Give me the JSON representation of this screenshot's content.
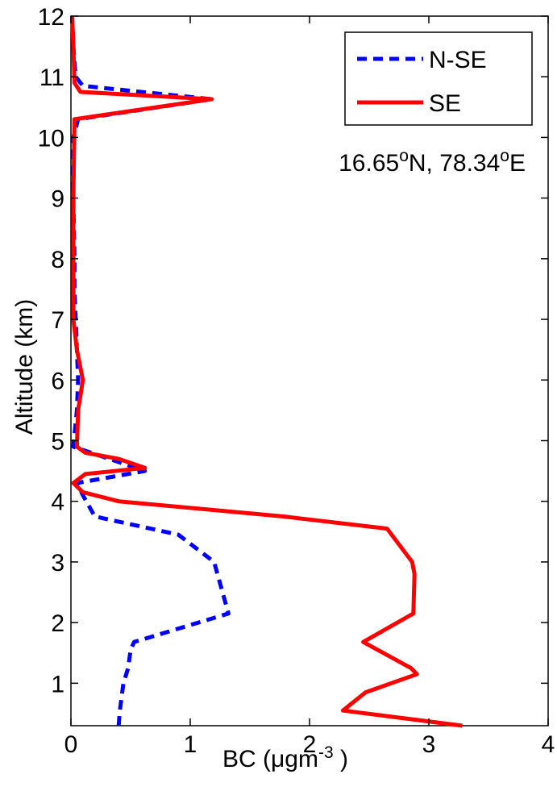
{
  "chart_data": {
    "type": "line",
    "xlabel": {
      "prefix": "BC (",
      "mu": "μ",
      "mid": "gm",
      "exp": "-3",
      "suffix": " )"
    },
    "ylabel": "Altitude (km)",
    "xlim": [
      0,
      4
    ],
    "ylim": [
      0.3,
      12
    ],
    "xticks": [
      0,
      1,
      2,
      3,
      4
    ],
    "xtick_labels": [
      "0",
      "1",
      "2",
      "3",
      "4"
    ],
    "yticks": [
      1,
      2,
      3,
      4,
      5,
      6,
      7,
      8,
      9,
      10,
      11,
      12
    ],
    "ytick_labels": [
      "1",
      "2",
      "3",
      "4",
      "5",
      "6",
      "7",
      "8",
      "9",
      "10",
      "11",
      "12"
    ],
    "grid": false,
    "legend_position": "top-right",
    "annotation": {
      "lat": "16.65",
      "deg1": "o",
      "lat_dir": "N, 78.34",
      "deg2": "o",
      "lon_dir": "E"
    },
    "series": [
      {
        "name": "N-SE",
        "color": "#0000ff",
        "style": "dashed",
        "x": [
          0.4,
          0.41,
          0.44,
          0.48,
          0.5,
          0.53,
          1.32,
          1.2,
          0.9,
          0.2,
          0.1,
          0.05,
          0.62,
          0.02,
          0.05,
          0.06,
          0.05,
          0.04,
          0.03,
          0.03,
          0.02,
          0.02,
          0.06,
          1.18,
          0.1,
          0.04,
          0.02,
          0.01
        ],
        "y": [
          0.3,
          0.55,
          1.0,
          1.25,
          1.55,
          1.68,
          2.15,
          3.0,
          3.45,
          3.75,
          4.1,
          4.3,
          4.5,
          4.9,
          5.5,
          6.0,
          6.5,
          7.0,
          7.5,
          8.0,
          9.0,
          10.0,
          10.3,
          10.63,
          10.85,
          11.0,
          11.5,
          12.0
        ]
      },
      {
        "name": "SE",
        "color": "#ff0000",
        "style": "solid",
        "x": [
          3.28,
          2.28,
          2.47,
          2.9,
          2.85,
          2.45,
          2.87,
          2.88,
          2.86,
          2.65,
          1.78,
          0.4,
          0.1,
          0.02,
          0.12,
          0.62,
          0.4,
          0.12,
          0.05,
          0.06,
          0.1,
          0.05,
          0.02,
          0.02,
          0.02,
          0.03,
          1.18,
          0.08,
          0.03,
          0.02,
          0.01
        ],
        "y": [
          0.3,
          0.55,
          0.85,
          1.15,
          1.25,
          1.68,
          2.15,
          2.8,
          3.0,
          3.55,
          3.75,
          4.0,
          4.15,
          4.3,
          4.45,
          4.55,
          4.7,
          4.8,
          4.9,
          5.5,
          6.0,
          6.5,
          7.0,
          8.0,
          9.0,
          10.3,
          10.63,
          10.75,
          10.9,
          11.5,
          12.0
        ]
      }
    ]
  }
}
